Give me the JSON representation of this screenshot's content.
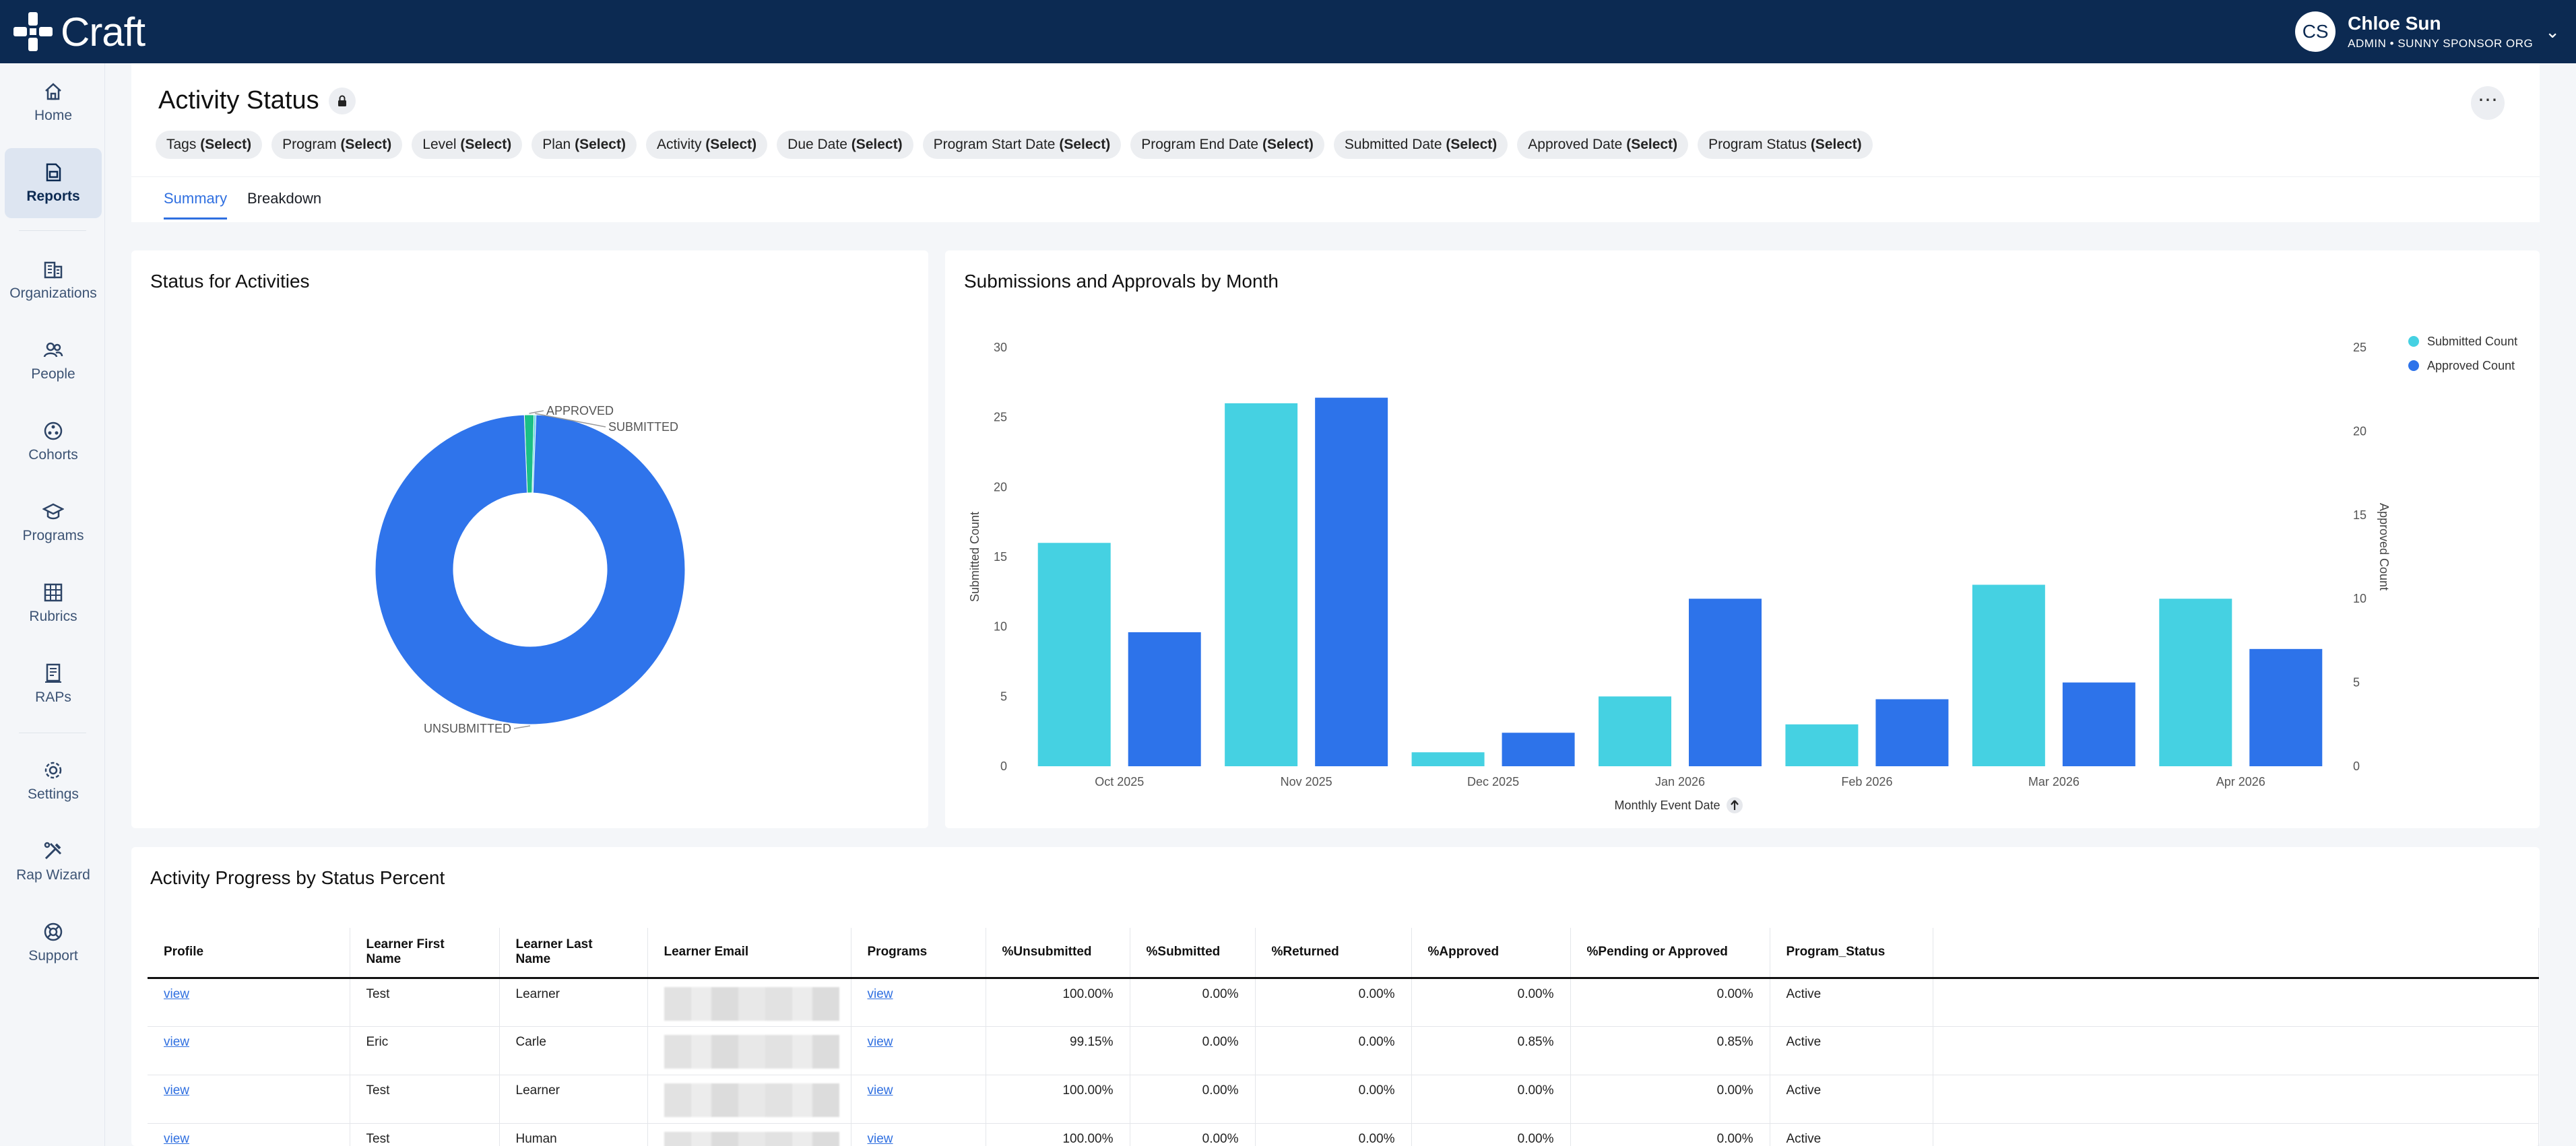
{
  "app": {
    "name": "Craft"
  },
  "user": {
    "initials": "CS",
    "name": "Chloe Sun",
    "role": "ADMIN • SUNNY SPONSOR ORG"
  },
  "sidebar": {
    "items": [
      {
        "label": "Home",
        "icon": "home-icon"
      },
      {
        "label": "Reports",
        "icon": "report-icon",
        "active": true
      },
      {
        "label": "Organizations",
        "icon": "building-icon"
      },
      {
        "label": "People",
        "icon": "people-icon"
      },
      {
        "label": "Cohorts",
        "icon": "cohort-icon"
      },
      {
        "label": "Programs",
        "icon": "graduation-cap-icon"
      },
      {
        "label": "Rubrics",
        "icon": "grid-icon"
      },
      {
        "label": "RAPs",
        "icon": "document-icon"
      },
      {
        "label": "Settings",
        "icon": "gear-icon"
      },
      {
        "label": "Rap Wizard",
        "icon": "tools-icon"
      },
      {
        "label": "Support",
        "icon": "lifebuoy-icon"
      }
    ]
  },
  "header": {
    "title": "Activity Status",
    "filters": [
      {
        "name": "Tags",
        "value": "(Select)"
      },
      {
        "name": "Program",
        "value": "(Select)"
      },
      {
        "name": "Level",
        "value": "(Select)"
      },
      {
        "name": "Plan",
        "value": "(Select)"
      },
      {
        "name": "Activity",
        "value": "(Select)"
      },
      {
        "name": "Due Date",
        "value": "(Select)"
      },
      {
        "name": "Program Start Date",
        "value": "(Select)"
      },
      {
        "name": "Program End Date",
        "value": "(Select)"
      },
      {
        "name": "Submitted Date",
        "value": "(Select)"
      },
      {
        "name": "Approved Date",
        "value": "(Select)"
      },
      {
        "name": "Program Status",
        "value": "(Select)"
      }
    ],
    "tabs": [
      {
        "label": "Summary",
        "active": true
      },
      {
        "label": "Breakdown"
      }
    ]
  },
  "status_card": {
    "title": "Status for Activities"
  },
  "bar_card": {
    "title": "Submissions and Approvals by Month"
  },
  "table_card": {
    "title": "Activity Progress by Status Percent"
  },
  "chart_data": [
    {
      "type": "pie",
      "title": "Status for Activities",
      "donut": true,
      "labels": [
        "UNSUBMITTED",
        "APPROVED",
        "SUBMITTED"
      ],
      "values": [
        98.8,
        1.0,
        0.2
      ],
      "colors": [
        "#2f74eb",
        "#1bbf86",
        "#45cfe0"
      ]
    },
    {
      "type": "bar",
      "title": "Submissions and Approvals by Month",
      "categories": [
        "Oct 2025",
        "Nov 2025",
        "Dec 2025",
        "Jan 2026",
        "Feb 2026",
        "Mar 2026",
        "Apr 2026"
      ],
      "series": [
        {
          "name": "Submitted Count",
          "axis": "left",
          "color": "#45d1e2",
          "values": [
            16,
            26,
            1,
            5,
            3,
            13,
            12
          ]
        },
        {
          "name": "Approved Count",
          "axis": "right",
          "color": "#2d73ea",
          "values": [
            8,
            22,
            2,
            10,
            4,
            5,
            7
          ]
        }
      ],
      "xlabel": "Monthly Event Date",
      "ylabel": "Submitted Count",
      "y2label": "Approved Count",
      "ylim": [
        0,
        30
      ],
      "y2lim": [
        0,
        25
      ],
      "yticks": [
        0,
        5,
        10,
        15,
        20,
        25,
        30
      ],
      "y2ticks": [
        0,
        5,
        10,
        15,
        20,
        25
      ],
      "legend": "top-right",
      "grid": false
    }
  ],
  "table": {
    "columns": [
      "Profile",
      "Learner First Name",
      "Learner Last Name",
      "Learner Email",
      "Programs",
      "%Unsubmitted",
      "%Submitted",
      "%Returned",
      "%Approved",
      "%Pending or Approved",
      "Program_Status"
    ],
    "rows": [
      {
        "profile": "view",
        "first": "Test",
        "last": "Learner",
        "programs": "view",
        "unsubmitted": "100.00%",
        "submitted": "0.00%",
        "returned": "0.00%",
        "approved": "0.00%",
        "pending": "0.00%",
        "status": "Active"
      },
      {
        "profile": "view",
        "first": "Eric",
        "last": "Carle",
        "programs": "view",
        "unsubmitted": "99.15%",
        "submitted": "0.00%",
        "returned": "0.00%",
        "approved": "0.85%",
        "pending": "0.85%",
        "status": "Active"
      },
      {
        "profile": "view",
        "first": "Test",
        "last": "Learner",
        "programs": "view",
        "unsubmitted": "100.00%",
        "submitted": "0.00%",
        "returned": "0.00%",
        "approved": "0.00%",
        "pending": "0.00%",
        "status": "Active"
      },
      {
        "profile": "view",
        "first": "Test",
        "last": "Human",
        "programs": "view",
        "unsubmitted": "100.00%",
        "submitted": "0.00%",
        "returned": "0.00%",
        "approved": "0.00%",
        "pending": "0.00%",
        "status": "Active"
      }
    ]
  }
}
